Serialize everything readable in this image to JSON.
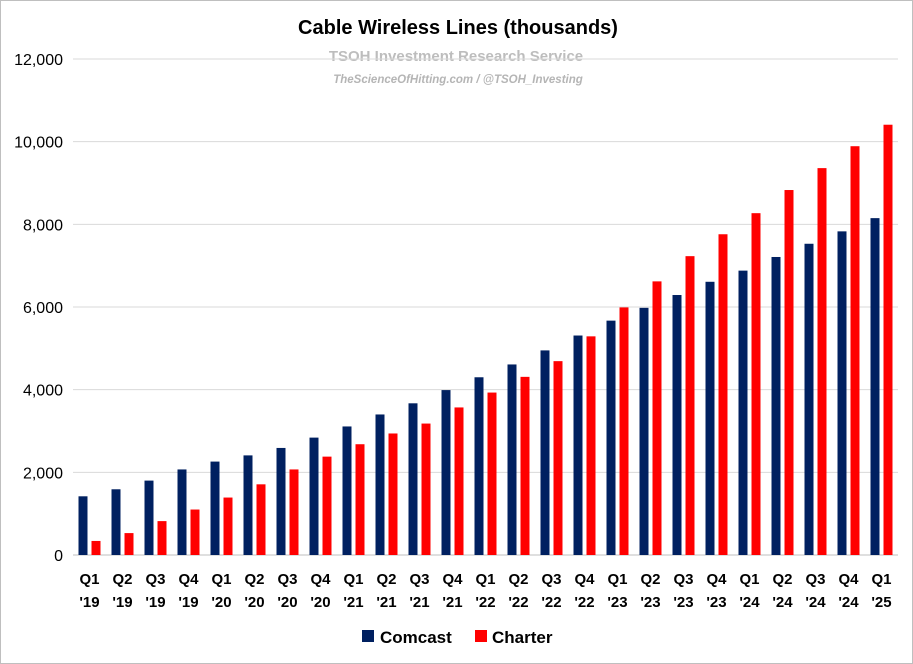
{
  "chart_data": {
    "type": "bar",
    "title": "Cable Wireless Lines (thousands)",
    "subtitle": "TSOH Investment Research Service",
    "credit": "TheScienceOfHitting.com / @TSOH_Investing",
    "categories": [
      [
        "Q1",
        "'19"
      ],
      [
        "Q2",
        "'19"
      ],
      [
        "Q3",
        "'19"
      ],
      [
        "Q4",
        "'19"
      ],
      [
        "Q1",
        "'20"
      ],
      [
        "Q2",
        "'20"
      ],
      [
        "Q3",
        "'20"
      ],
      [
        "Q4",
        "'20"
      ],
      [
        "Q1",
        "'21"
      ],
      [
        "Q2",
        "'21"
      ],
      [
        "Q3",
        "'21"
      ],
      [
        "Q4",
        "'21"
      ],
      [
        "Q1",
        "'22"
      ],
      [
        "Q2",
        "'22"
      ],
      [
        "Q3",
        "'22"
      ],
      [
        "Q4",
        "'22"
      ],
      [
        "Q1",
        "'23"
      ],
      [
        "Q2",
        "'23"
      ],
      [
        "Q3",
        "'23"
      ],
      [
        "Q4",
        "'23"
      ],
      [
        "Q1",
        "'24"
      ],
      [
        "Q2",
        "'24"
      ],
      [
        "Q3",
        "'24"
      ],
      [
        "Q4",
        "'24"
      ],
      [
        "Q1",
        "'25"
      ]
    ],
    "series": [
      {
        "name": "Comcast",
        "color": "#002060",
        "values": [
          1420,
          1590,
          1800,
          2070,
          2260,
          2410,
          2590,
          2840,
          3110,
          3400,
          3670,
          3990,
          4300,
          4610,
          4950,
          5310,
          5670,
          5980,
          6290,
          6610,
          6880,
          7210,
          7530,
          7830,
          8150
        ]
      },
      {
        "name": "Charter",
        "color": "#ff0000",
        "values": [
          340,
          530,
          820,
          1100,
          1390,
          1710,
          2070,
          2380,
          2680,
          2940,
          3180,
          3570,
          3930,
          4310,
          4690,
          5290,
          5990,
          6620,
          7230,
          7760,
          8270,
          8830,
          9360,
          9890,
          10410
        ]
      }
    ],
    "ylim": [
      0,
      12000
    ],
    "yticks": [
      "0",
      "2,000",
      "4,000",
      "6,000",
      "8,000",
      "10,000",
      "12,000"
    ],
    "ytick_values": [
      0,
      2000,
      4000,
      6000,
      8000,
      10000,
      12000
    ],
    "grid": true,
    "legend_position": "bottom-center"
  }
}
